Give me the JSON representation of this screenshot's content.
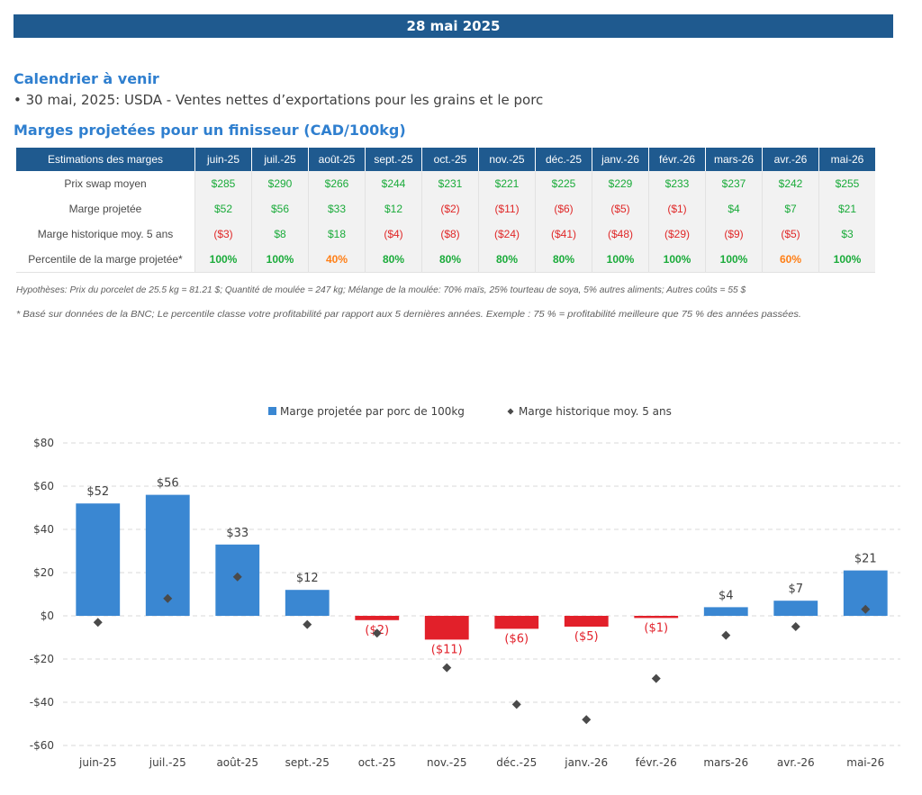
{
  "banner": {
    "date": "28 mai 2025"
  },
  "calendar": {
    "heading": "Calendrier à venir",
    "items": [
      "• 30 mai, 2025: USDA - Ventes nettes d’exportations pour les grains et le porc"
    ]
  },
  "margins": {
    "heading": "Marges projetées pour un finisseur (CAD/100kg)",
    "table": {
      "header_first": "Estimations des marges",
      "months": [
        "juin-25",
        "juil.-25",
        "août-25",
        "sept.-25",
        "oct.-25",
        "nov.-25",
        "déc.-25",
        "janv.-26",
        "févr.-26",
        "mars-26",
        "avr.-26",
        "mai-26"
      ],
      "rows": [
        {
          "label": "Prix swap moyen",
          "values": [
            "$285",
            "$290",
            "$266",
            "$244",
            "$231",
            "$221",
            "$225",
            "$229",
            "$233",
            "$237",
            "$242",
            "$255"
          ],
          "colors": [
            "green",
            "green",
            "green",
            "green",
            "green",
            "green",
            "green",
            "green",
            "green",
            "green",
            "green",
            "green"
          ]
        },
        {
          "label": "Marge projetée",
          "values": [
            "$52",
            "$56",
            "$33",
            "$12",
            "($2)",
            "($11)",
            "($6)",
            "($5)",
            "($1)",
            "$4",
            "$7",
            "$21"
          ],
          "colors": [
            "green",
            "green",
            "green",
            "green",
            "red",
            "red",
            "red",
            "red",
            "red",
            "green",
            "green",
            "green"
          ]
        },
        {
          "label": "Marge historique moy. 5 ans",
          "values": [
            "($3)",
            "$8",
            "$18",
            "($4)",
            "($8)",
            "($24)",
            "($41)",
            "($48)",
            "($29)",
            "($9)",
            "($5)",
            "$3"
          ],
          "colors": [
            "red",
            "green",
            "green",
            "red",
            "red",
            "red",
            "red",
            "red",
            "red",
            "red",
            "red",
            "green"
          ]
        },
        {
          "label": "Percentile de la marge projetée*",
          "values": [
            "100%",
            "100%",
            "40%",
            "80%",
            "80%",
            "80%",
            "80%",
            "100%",
            "100%",
            "100%",
            "60%",
            "100%"
          ],
          "colors": [
            "green",
            "green",
            "orange",
            "green",
            "green",
            "green",
            "green",
            "green",
            "green",
            "green",
            "orange",
            "green"
          ]
        }
      ]
    },
    "footnote_hypotheses": "Hypothèses: Prix du porcelet de 25.5 kg = 81.21 $; Quantité de moulée = 247 kg; Mélange de la moulée: 70% maïs, 25% tourteau de soya, 5% autres aliments; Autres coûts = 55 $",
    "footnote_bnc": "* Basé sur données de la BNC; Le percentile classe votre profitabilité par rapport aux 5 dernières années. Exemple : 75 % = profitabilité meilleure que 75 % des années passées."
  },
  "colors": {
    "banner": "#1f5a8f",
    "bar_positive": "#3a87d2",
    "bar_negative": "#e2202a",
    "marker": "#4a4a4a",
    "green": "#1aab3a",
    "red": "#e02828",
    "orange": "#ff7f16"
  },
  "chart_data": {
    "type": "bar",
    "categories": [
      "juin-25",
      "juil.-25",
      "août-25",
      "sept.-25",
      "oct.-25",
      "nov.-25",
      "déc.-25",
      "janv.-26",
      "févr.-26",
      "mars-26",
      "avr.-26",
      "mai-26"
    ],
    "series": [
      {
        "name": "Marge projetée par porc de 100kg",
        "kind": "bar",
        "values": [
          52,
          56,
          33,
          12,
          -2,
          -11,
          -6,
          -5,
          -1,
          4,
          7,
          21
        ],
        "labels": [
          "$52",
          "$56",
          "$33",
          "$12",
          "($2)",
          "($11)",
          "($6)",
          "($5)",
          "($1)",
          "$4",
          "$7",
          "$21"
        ]
      },
      {
        "name": "Marge historique moy. 5 ans",
        "kind": "marker",
        "values": [
          -3,
          8,
          18,
          -4,
          -8,
          -24,
          -41,
          -48,
          -29,
          -9,
          -5,
          3
        ]
      }
    ],
    "ylim": [
      -60,
      80
    ],
    "yticks": [
      80,
      60,
      40,
      20,
      0,
      -20,
      -40,
      -60
    ],
    "ytick_labels": [
      "$80",
      "$60",
      "$40",
      "$20",
      "$0",
      "-$20",
      "-$40",
      "-$60"
    ],
    "grid": true,
    "legend": "top-center"
  }
}
